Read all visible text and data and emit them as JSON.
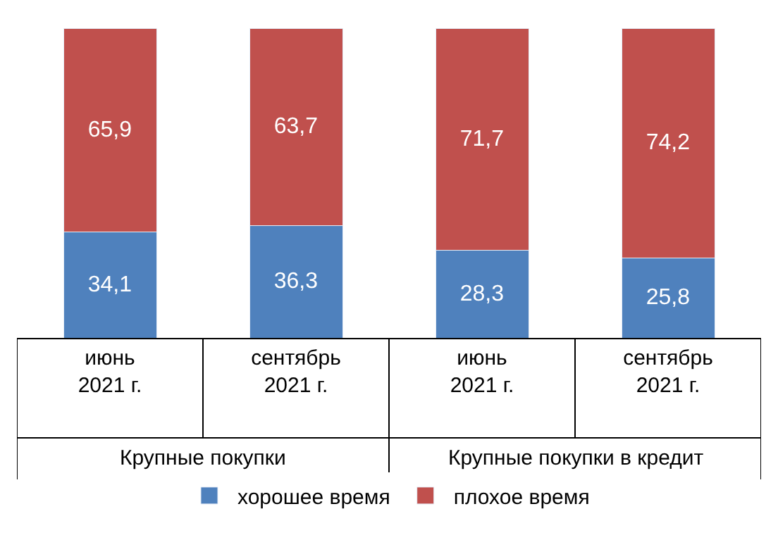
{
  "chart_data": {
    "type": "bar",
    "stacked": true,
    "data_labels": true,
    "legend": "bottom",
    "categories": [
      "июнь\n2021 г.",
      "сентябрь\n2021 г.",
      "июнь\n2021 г.",
      "сентябрь\n2021 г."
    ],
    "annotations": [
      "Крупные покупки",
      "Крупные покупки в кредит"
    ],
    "series": [
      {
        "name": "хорошее время",
        "color": "#4f81bd",
        "values": [
          34.1,
          36.3,
          28.3,
          25.8
        ],
        "value_labels": [
          "34,1",
          "36,3",
          "28,3",
          "25,8"
        ]
      },
      {
        "name": "плохое время",
        "color": "#c0504d",
        "values": [
          65.9,
          63.7,
          71.7,
          74.2
        ],
        "value_labels": [
          "65,9",
          "63,7",
          "71,7",
          "74,2"
        ]
      }
    ]
  }
}
